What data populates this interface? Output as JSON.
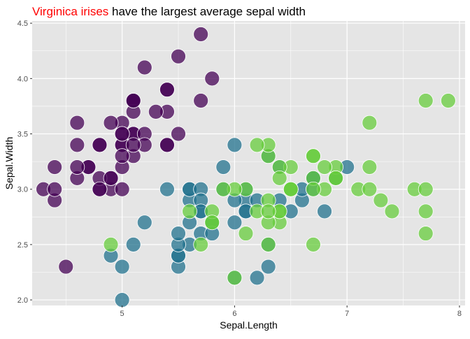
{
  "chart_data": {
    "type": "scatter",
    "title": {
      "highlight": "Virginica irises",
      "rest": " have the largest average sepal width",
      "highlight_color": "#ff0000"
    },
    "xlabel": "Sepal.Length",
    "ylabel": "Sepal.Width",
    "xlim": [
      4.2,
      8.05
    ],
    "ylim": [
      1.95,
      4.52
    ],
    "x_ticks": [
      5,
      6,
      7,
      8
    ],
    "y_ticks": [
      2.0,
      2.5,
      3.0,
      3.5,
      4.0,
      4.5
    ],
    "x_tick_labels": [
      "5",
      "6",
      "7",
      "8"
    ],
    "y_tick_labels": [
      "2.0",
      "2.5",
      "3.0",
      "3.5",
      "4.0",
      "4.5"
    ],
    "grid": true,
    "legend": "none",
    "panel_background": "#e5e5e5",
    "grid_color": "#ffffff",
    "marker_outline": "#ffffff",
    "series": [
      {
        "color": "#440154",
        "opacity": 0.75,
        "points": [
          [
            5.1,
            3.5
          ],
          [
            4.9,
            3.0
          ],
          [
            4.7,
            3.2
          ],
          [
            4.6,
            3.1
          ],
          [
            5.0,
            3.6
          ],
          [
            5.4,
            3.9
          ],
          [
            4.6,
            3.4
          ],
          [
            5.0,
            3.4
          ],
          [
            4.4,
            2.9
          ],
          [
            4.9,
            3.1
          ],
          [
            5.4,
            3.7
          ],
          [
            4.8,
            3.4
          ],
          [
            4.8,
            3.0
          ],
          [
            4.3,
            3.0
          ],
          [
            5.8,
            4.0
          ],
          [
            5.7,
            4.4
          ],
          [
            5.4,
            3.9
          ],
          [
            5.1,
            3.5
          ],
          [
            5.7,
            3.8
          ],
          [
            5.1,
            3.8
          ],
          [
            5.4,
            3.4
          ],
          [
            5.1,
            3.7
          ],
          [
            4.6,
            3.6
          ],
          [
            5.1,
            3.3
          ],
          [
            4.8,
            3.4
          ],
          [
            5.0,
            3.0
          ],
          [
            5.0,
            3.4
          ],
          [
            5.2,
            3.5
          ],
          [
            5.2,
            3.4
          ],
          [
            4.7,
            3.2
          ],
          [
            4.8,
            3.1
          ],
          [
            5.4,
            3.4
          ],
          [
            5.2,
            4.1
          ],
          [
            5.5,
            4.2
          ],
          [
            4.9,
            3.1
          ],
          [
            5.0,
            3.2
          ],
          [
            5.5,
            3.5
          ],
          [
            4.9,
            3.6
          ],
          [
            4.4,
            3.0
          ],
          [
            5.1,
            3.4
          ],
          [
            5.0,
            3.5
          ],
          [
            4.5,
            2.3
          ],
          [
            4.4,
            3.2
          ],
          [
            5.0,
            3.5
          ],
          [
            5.1,
            3.8
          ],
          [
            4.8,
            3.0
          ],
          [
            5.1,
            3.8
          ],
          [
            4.6,
            3.2
          ],
          [
            5.3,
            3.7
          ],
          [
            5.0,
            3.3
          ]
        ]
      },
      {
        "color": "#21718e",
        "opacity": 0.75,
        "points": [
          [
            7.0,
            3.2
          ],
          [
            6.4,
            3.2
          ],
          [
            6.9,
            3.1
          ],
          [
            5.5,
            2.3
          ],
          [
            6.5,
            2.8
          ],
          [
            5.7,
            2.8
          ],
          [
            6.3,
            3.3
          ],
          [
            4.9,
            2.4
          ],
          [
            6.6,
            2.9
          ],
          [
            5.2,
            2.7
          ],
          [
            5.0,
            2.0
          ],
          [
            5.9,
            3.0
          ],
          [
            6.0,
            2.2
          ],
          [
            6.1,
            2.9
          ],
          [
            5.6,
            2.9
          ],
          [
            6.7,
            3.1
          ],
          [
            5.6,
            3.0
          ],
          [
            5.8,
            2.7
          ],
          [
            6.2,
            2.2
          ],
          [
            5.6,
            2.5
          ],
          [
            5.9,
            3.2
          ],
          [
            6.1,
            2.8
          ],
          [
            6.3,
            2.5
          ],
          [
            6.1,
            2.8
          ],
          [
            6.4,
            2.9
          ],
          [
            6.6,
            3.0
          ],
          [
            6.8,
            2.8
          ],
          [
            6.7,
            3.0
          ],
          [
            6.0,
            2.9
          ],
          [
            5.7,
            2.6
          ],
          [
            5.5,
            2.4
          ],
          [
            5.5,
            2.4
          ],
          [
            5.8,
            2.7
          ],
          [
            6.0,
            2.7
          ],
          [
            5.4,
            3.0
          ],
          [
            6.0,
            3.4
          ],
          [
            6.7,
            3.1
          ],
          [
            6.3,
            2.3
          ],
          [
            5.6,
            3.0
          ],
          [
            5.5,
            2.5
          ],
          [
            5.5,
            2.6
          ],
          [
            6.1,
            3.0
          ],
          [
            5.8,
            2.6
          ],
          [
            5.0,
            2.3
          ],
          [
            5.6,
            2.7
          ],
          [
            5.7,
            3.0
          ],
          [
            5.7,
            2.9
          ],
          [
            6.2,
            2.9
          ],
          [
            5.1,
            2.5
          ],
          [
            5.7,
            2.8
          ]
        ]
      },
      {
        "color": "#67cc3c",
        "opacity": 0.75,
        "points": [
          [
            6.3,
            3.3
          ],
          [
            5.8,
            2.7
          ],
          [
            7.1,
            3.0
          ],
          [
            6.3,
            2.9
          ],
          [
            6.5,
            3.0
          ],
          [
            7.6,
            3.0
          ],
          [
            4.9,
            2.5
          ],
          [
            7.3,
            2.9
          ],
          [
            6.7,
            2.5
          ],
          [
            7.2,
            3.6
          ],
          [
            6.5,
            3.2
          ],
          [
            6.4,
            2.7
          ],
          [
            6.8,
            3.0
          ],
          [
            5.7,
            2.5
          ],
          [
            5.8,
            2.8
          ],
          [
            6.4,
            3.2
          ],
          [
            6.5,
            3.0
          ],
          [
            7.7,
            3.8
          ],
          [
            7.7,
            2.6
          ],
          [
            6.0,
            2.2
          ],
          [
            6.9,
            3.2
          ],
          [
            5.6,
            2.8
          ],
          [
            7.7,
            2.8
          ],
          [
            6.3,
            2.7
          ],
          [
            6.7,
            3.3
          ],
          [
            7.2,
            3.2
          ],
          [
            6.2,
            2.8
          ],
          [
            6.1,
            3.0
          ],
          [
            6.4,
            2.8
          ],
          [
            7.2,
            3.0
          ],
          [
            7.4,
            2.8
          ],
          [
            7.9,
            3.8
          ],
          [
            6.4,
            2.8
          ],
          [
            6.3,
            2.8
          ],
          [
            6.1,
            2.6
          ],
          [
            7.7,
            3.0
          ],
          [
            6.3,
            3.4
          ],
          [
            6.4,
            3.1
          ],
          [
            6.0,
            3.0
          ],
          [
            6.9,
            3.1
          ],
          [
            6.7,
            3.1
          ],
          [
            6.9,
            3.1
          ],
          [
            5.8,
            2.7
          ],
          [
            6.8,
            3.2
          ],
          [
            6.7,
            3.3
          ],
          [
            6.7,
            3.0
          ],
          [
            6.3,
            2.5
          ],
          [
            6.5,
            3.0
          ],
          [
            6.2,
            3.4
          ],
          [
            5.9,
            3.0
          ]
        ]
      }
    ]
  }
}
